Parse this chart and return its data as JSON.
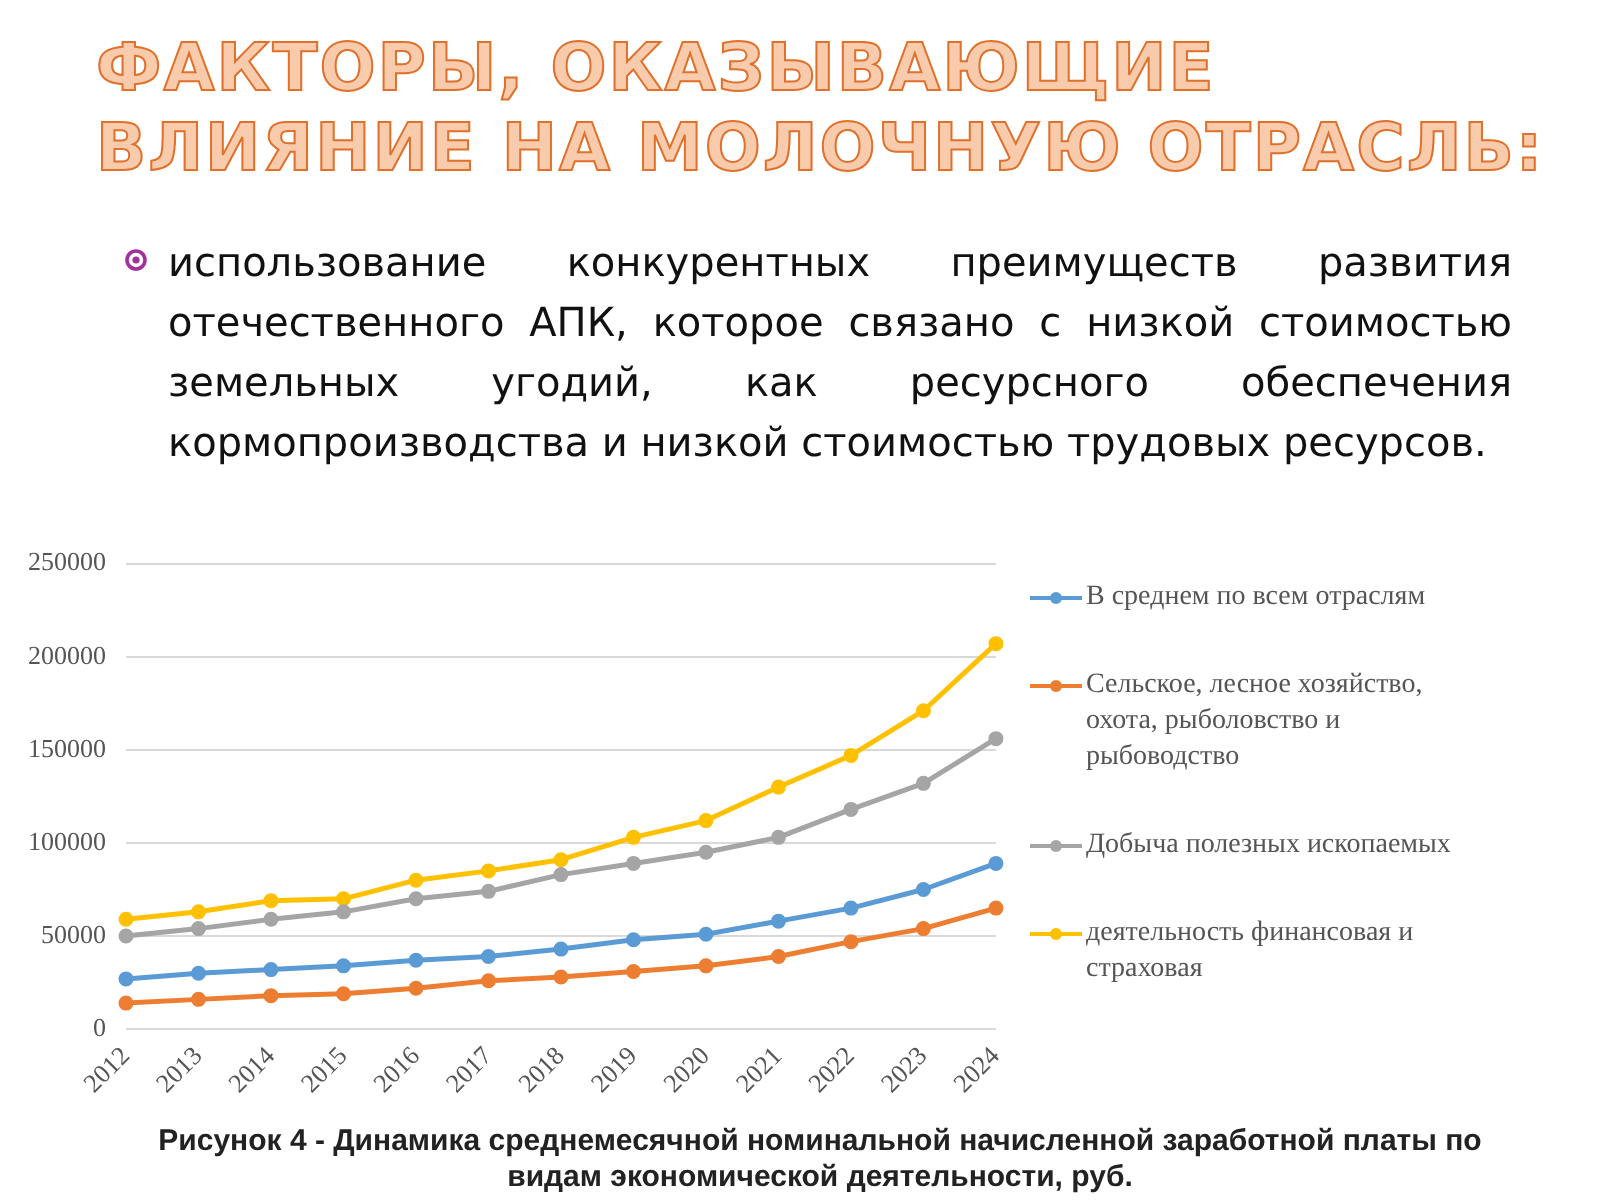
{
  "chart_data": {
    "type": "line",
    "title": "ФАКТОРЫ, ОКАЗЫВАЮЩИЕ ВЛИЯНИЕ НА МОЛОЧНУЮ ОТРАСЛЬ:",
    "subtitle": "использование конкурентных преимуществ развития отечественного АПК, которое связано с низкой стоимостью земельных угодий, как ресурсного обеспечения кормопроизводства и низкой стоимостью трудовых ресурсов.",
    "annotations": [
      "Рисунок 4 - Динамика среднемесячной номинальной начисленной заработной платы по видам экономической деятельности, руб."
    ],
    "categories": [
      "2012",
      "2013",
      "2014",
      "2015",
      "2016",
      "2017",
      "2018",
      "2019",
      "2020",
      "2021",
      "2022",
      "2023",
      "2024"
    ],
    "series": [
      {
        "name": "В среднем по всем отраслям",
        "color": "#5b9bd5",
        "values": [
          27000,
          30000,
          32000,
          34000,
          37000,
          39000,
          43000,
          48000,
          51000,
          58000,
          65000,
          75000,
          89000
        ]
      },
      {
        "name": "Сельское, лесное хозяйство, охота, рыболовство и рыбоводство",
        "color": "#ed7d31",
        "values": [
          14000,
          16000,
          18000,
          19000,
          22000,
          26000,
          28000,
          31000,
          34000,
          39000,
          47000,
          54000,
          65000
        ]
      },
      {
        "name": "Добыча полезных ископаемых",
        "color": "#a5a5a5",
        "values": [
          50000,
          54000,
          59000,
          63000,
          70000,
          74000,
          83000,
          89000,
          95000,
          103000,
          118000,
          132000,
          156000
        ]
      },
      {
        "name": "деятельность финансовая и страховая",
        "color": "#ffc000",
        "values": [
          59000,
          63000,
          69000,
          70000,
          80000,
          85000,
          91000,
          103000,
          112000,
          130000,
          147000,
          171000,
          207000
        ]
      }
    ],
    "ylim": [
      0,
      250000
    ],
    "yticks": [
      0,
      50000,
      100000,
      150000,
      200000,
      250000
    ],
    "grid": "y",
    "legend": "right",
    "marker": "circle",
    "line_style": "solid"
  }
}
